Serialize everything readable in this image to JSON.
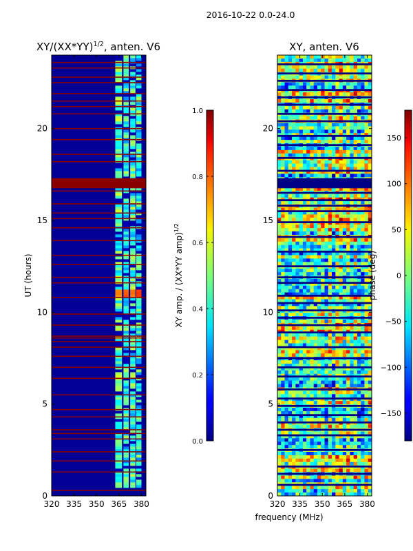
{
  "suptitle": "2016-10-22 0.0-24.0",
  "shared_xlabel": "frequency (MHz)",
  "chart_data": [
    {
      "type": "heatmap",
      "id": "amp",
      "title_main": "XY/(XX*YY)",
      "title_exp": "1/2",
      "title_suffix": ", anten. V6",
      "ylabel": "UT (hours)",
      "xlim": [
        320,
        383
      ],
      "ylim": [
        0,
        24
      ],
      "xticks": [
        320,
        335,
        350,
        365,
        380
      ],
      "yticks": [
        0,
        5,
        10,
        15,
        20
      ],
      "background_value": 0.02,
      "noise_amp": 0.03,
      "flag_value": 0.99,
      "flagged_hours": [
        0.3,
        1.3,
        1.9,
        2.4,
        3.1,
        3.4,
        3.6,
        4.3,
        4.7,
        5.5,
        6.4,
        7.0,
        7.6,
        8.1,
        8.4,
        8.6,
        8.7,
        9.3,
        9.9,
        10.8,
        11.6,
        11.9,
        12.6,
        13.1,
        13.9,
        14.6,
        15.1,
        15.4,
        15.9,
        16.6,
        17.1,
        18.2,
        18.6,
        19.4,
        20.0,
        20.8,
        21.2,
        21.5,
        21.9,
        22.5,
        22.8,
        23.3,
        23.6
      ],
      "flagged_band": [
        16.75,
        17.3
      ],
      "channels": [
        {
          "f0": 362.5,
          "f1": 367.0,
          "value": 0.45
        },
        {
          "f0": 368.0,
          "f1": 371.5,
          "value": 0.4
        },
        {
          "f0": 372.5,
          "f1": 376.0,
          "value": 0.42
        },
        {
          "f0": 376.5,
          "f1": 380.0,
          "value": 0.4
        }
      ],
      "channel_active_hours": [
        [
          0.5,
          24
        ]
      ],
      "hot_spots": [
        {
          "t0": 10.8,
          "t1": 11.3,
          "value": 0.78
        }
      ],
      "colorbar": {
        "label_main": "XY amp. / (XX*YY amp)",
        "label_exp": "1/2",
        "min": 0.0,
        "max": 1.0,
        "ticks": [
          "0.0",
          "0.2",
          "0.4",
          "0.6",
          "0.8",
          "1.0"
        ]
      }
    },
    {
      "type": "heatmap",
      "id": "phase",
      "title_main": "XY, anten. V6",
      "ylabel": "phase (deg)",
      "xlim": [
        320,
        383
      ],
      "ylim": [
        0,
        24
      ],
      "xticks": [
        320,
        335,
        350,
        365,
        380
      ],
      "yticks": [
        0,
        5,
        10,
        15,
        20
      ],
      "value_range": [
        -180,
        180
      ],
      "flag_value": -178,
      "flagged_hours": [
        0.6,
        1.2,
        1.6,
        2.5,
        3.3,
        3.6,
        4.0,
        4.4,
        4.9,
        5.3,
        5.8,
        6.5,
        7.0,
        7.5,
        8.1,
        8.9,
        9.3,
        9.7,
        10.1,
        10.5,
        10.9,
        11.6,
        11.9,
        12.5,
        13.3,
        14.1,
        14.9,
        15.5,
        15.8,
        16.1,
        16.5,
        17.7,
        18.4,
        19.1,
        19.6,
        20.4,
        20.8,
        21.3,
        21.7,
        22.1,
        22.6,
        23.0,
        23.5
      ],
      "flagged_band": [
        16.75,
        17.3
      ],
      "colorbar": {
        "min": -180,
        "max": 180,
        "ticks": [
          "150",
          "100",
          "50",
          "0",
          "−50",
          "−100",
          "−150"
        ],
        "tick_values": [
          150,
          100,
          50,
          0,
          -50,
          -100,
          -150
        ]
      }
    }
  ]
}
